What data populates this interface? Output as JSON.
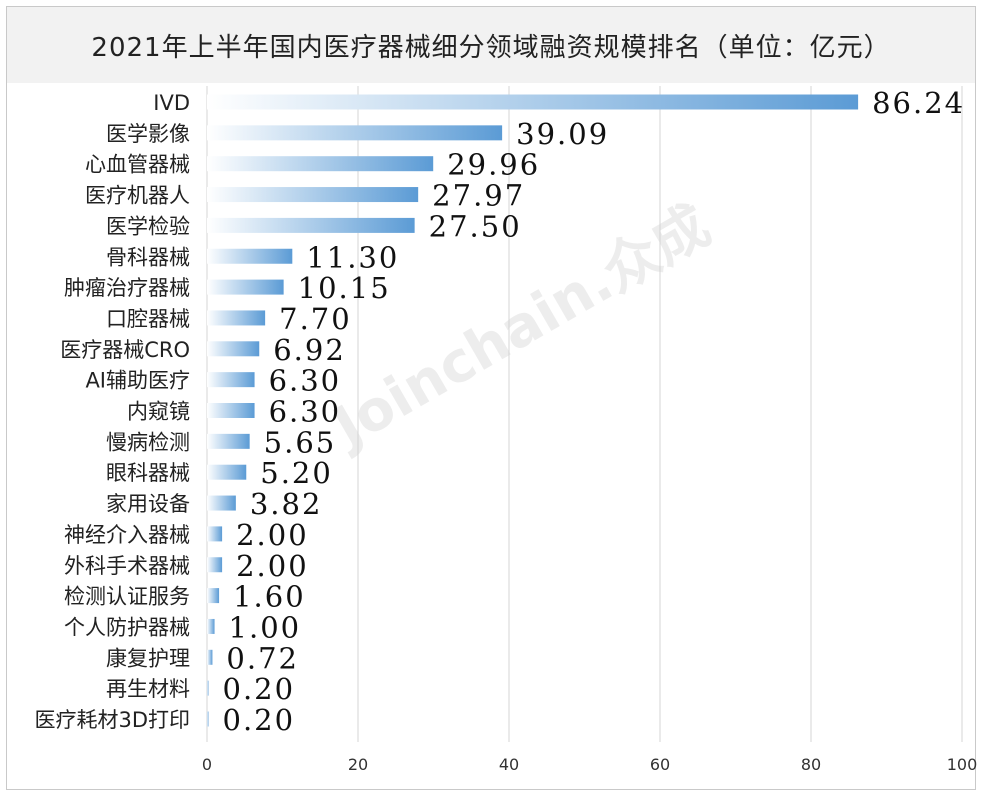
{
  "title": "2021年上半年国内医疗器械细分领域融资规模排名（单位：亿元）",
  "watermark": "Joinchain.众成",
  "colors": {
    "bar_end": "#5b9bd5",
    "bar_start": "#ffffff",
    "grid": "#d4d4d4"
  },
  "chart_data": {
    "type": "bar",
    "orientation": "horizontal",
    "title": "2021年上半年国内医疗器械细分领域融资规模排名（单位：亿元）",
    "categories": [
      "IVD",
      "医学影像",
      "心血管器械",
      "医疗机器人",
      "医学检验",
      "骨科器械",
      "肿瘤治疗器械",
      "口腔器械",
      "医疗器械CRO",
      "AI辅助医疗",
      "内窥镜",
      "慢病检测",
      "眼科器械",
      "家用设备",
      "神经介入器械",
      "外科手术器械",
      "检测认证服务",
      "个人防护器械",
      "康复护理",
      "再生材料",
      "医疗耗材3D打印"
    ],
    "values": [
      86.24,
      39.09,
      29.96,
      27.97,
      27.5,
      11.3,
      10.15,
      7.7,
      6.92,
      6.3,
      6.3,
      5.65,
      5.2,
      3.82,
      2.0,
      2.0,
      1.6,
      1.0,
      0.72,
      0.2,
      0.2
    ],
    "value_labels": [
      "86.24",
      "39.09",
      "29.96",
      "27.97",
      "27.50",
      "11.30",
      "10.15",
      "7.70",
      "6.92",
      "6.30",
      "6.30",
      "5.65",
      "5.20",
      "3.82",
      "2.00",
      "2.00",
      "1.60",
      "1.00",
      "0.72",
      "0.20",
      "0.20"
    ],
    "xlim": [
      0,
      100
    ],
    "xticks": [
      "0",
      "20",
      "40",
      "60",
      "80",
      "100"
    ],
    "xtick_values": [
      0,
      20,
      40,
      60,
      80,
      100
    ],
    "grid": true,
    "legend": "none",
    "xlabel": "",
    "ylabel": ""
  }
}
